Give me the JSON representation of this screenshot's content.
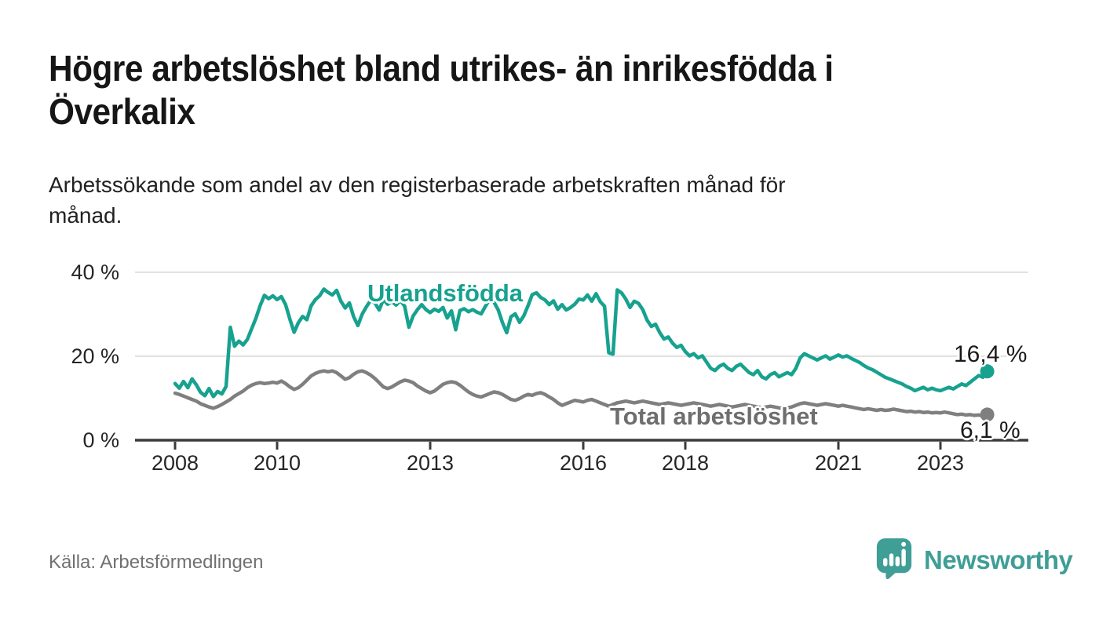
{
  "header": {
    "title_lines": [
      "Högre arbetslöshet bland utrikes- än inrikesfödda i",
      "Överkalix"
    ],
    "subtitle_lines": [
      "Arbetssökande som andel av den registerbaserade arbetskraften månad för",
      "månad."
    ]
  },
  "chart_data": {
    "type": "line",
    "x_unit": "month",
    "x_start": "2008-01",
    "x_end": "2023-12",
    "x_ticks": [
      2008,
      2010,
      2013,
      2016,
      2018,
      2021,
      2023
    ],
    "y_ticks": [
      {
        "value": 0,
        "label": "0 %"
      },
      {
        "value": 20,
        "label": "20 %"
      },
      {
        "value": 40,
        "label": "40 %"
      }
    ],
    "ylim": [
      0,
      42
    ],
    "grid": "horizontal",
    "legend_position": "inline-labels",
    "series": [
      {
        "name": "Utlandsfödda",
        "color": "#17a28f",
        "end_value": 16.4,
        "end_label": "16,4 %",
        "values": [
          13.5,
          12.4,
          14.0,
          12.5,
          14.6,
          13.2,
          11.4,
          10.6,
          12.3,
          10.4,
          11.6,
          11.0,
          12.8,
          26.9,
          22.4,
          23.6,
          22.7,
          24.0,
          26.5,
          29.0,
          32.0,
          34.5,
          33.7,
          34.4,
          33.5,
          34.2,
          32.3,
          28.8,
          25.7,
          28.0,
          29.5,
          28.7,
          32.0,
          33.5,
          34.4,
          36.0,
          35.2,
          34.6,
          35.7,
          33.1,
          31.5,
          32.7,
          29.4,
          27.3,
          30.0,
          31.8,
          33.3,
          32.7,
          31.0,
          33.5,
          32.4,
          33.0,
          32.2,
          33.3,
          31.9,
          26.9,
          29.6,
          31.1,
          32.3,
          31.1,
          30.4,
          31.2,
          30.7,
          31.6,
          29.1,
          30.8,
          26.3,
          30.9,
          31.3,
          30.6,
          31.1,
          30.5,
          30.1,
          31.9,
          33.6,
          32.9,
          31.0,
          28.0,
          25.6,
          29.4,
          30.1,
          28.1,
          29.6,
          32.0,
          34.7,
          35.1,
          34.0,
          33.4,
          32.3,
          33.2,
          31.2,
          32.3,
          31.0,
          31.6,
          32.4,
          33.6,
          33.4,
          34.6,
          33.1,
          34.9,
          33.0,
          31.9,
          20.8,
          20.5,
          35.8,
          35.1,
          33.6,
          31.6,
          33.1,
          32.6,
          31.1,
          28.6,
          27.1,
          27.6,
          25.6,
          24.1,
          24.6,
          23.1,
          22.1,
          22.6,
          21.1,
          20.1,
          20.6,
          19.6,
          20.1,
          18.6,
          17.1,
          16.6,
          17.6,
          18.1,
          17.1,
          16.6,
          17.6,
          18.1,
          17.1,
          16.1,
          15.6,
          16.6,
          15.1,
          14.6,
          15.6,
          16.1,
          15.1,
          15.6,
          16.1,
          15.6,
          17.1,
          19.6,
          20.6,
          20.1,
          19.6,
          19.1,
          19.6,
          20.1,
          19.3,
          19.8,
          20.3,
          19.8,
          20.1,
          19.5,
          19.0,
          18.5,
          17.8,
          17.2,
          16.8,
          16.2,
          15.6,
          15.0,
          14.6,
          14.2,
          13.8,
          13.4,
          12.8,
          12.4,
          11.8,
          12.2,
          12.6,
          12.0,
          12.4,
          12.0,
          11.8,
          12.2,
          12.6,
          12.2,
          12.8,
          13.4,
          13.0,
          13.8,
          14.6,
          15.4,
          15.0,
          16.4
        ]
      },
      {
        "name": "Total arbetslöshet",
        "color": "#7f7f7f",
        "end_value": 6.1,
        "end_label": "6,1 %",
        "values": [
          11.2,
          10.9,
          10.5,
          10.1,
          9.7,
          9.3,
          8.7,
          8.3,
          7.9,
          7.6,
          8.0,
          8.5,
          9.1,
          9.7,
          10.5,
          11.1,
          11.7,
          12.5,
          13.1,
          13.5,
          13.7,
          13.5,
          13.6,
          13.8,
          13.6,
          14.1,
          13.5,
          12.7,
          12.1,
          12.5,
          13.3,
          14.3,
          15.3,
          15.9,
          16.3,
          16.5,
          16.3,
          16.5,
          16.1,
          15.3,
          14.5,
          14.9,
          15.7,
          16.3,
          16.5,
          16.1,
          15.5,
          14.7,
          13.7,
          12.7,
          12.3,
          12.7,
          13.3,
          13.9,
          14.3,
          14.1,
          13.7,
          12.9,
          12.3,
          11.7,
          11.3,
          11.7,
          12.5,
          13.3,
          13.7,
          13.9,
          13.7,
          13.1,
          12.3,
          11.5,
          10.9,
          10.5,
          10.3,
          10.7,
          11.1,
          11.5,
          11.3,
          10.9,
          10.3,
          9.7,
          9.5,
          9.9,
          10.5,
          10.9,
          10.7,
          11.1,
          11.3,
          10.9,
          10.3,
          9.7,
          8.9,
          8.3,
          8.7,
          9.1,
          9.5,
          9.3,
          9.1,
          9.5,
          9.7,
          9.3,
          8.9,
          8.5,
          8.1,
          8.5,
          8.9,
          9.1,
          9.3,
          9.1,
          8.9,
          9.1,
          9.3,
          9.1,
          8.9,
          8.7,
          8.5,
          8.7,
          8.9,
          8.7,
          8.5,
          8.3,
          8.5,
          8.7,
          8.9,
          8.7,
          8.5,
          8.3,
          8.1,
          8.3,
          8.5,
          8.3,
          8.1,
          7.9,
          8.1,
          8.3,
          8.5,
          8.3,
          8.1,
          7.9,
          7.7,
          7.9,
          8.1,
          7.9,
          7.7,
          7.5,
          7.7,
          7.9,
          8.3,
          8.7,
          8.9,
          8.7,
          8.5,
          8.3,
          8.5,
          8.7,
          8.5,
          8.3,
          8.1,
          8.3,
          8.1,
          7.9,
          7.7,
          7.5,
          7.3,
          7.5,
          7.3,
          7.1,
          7.3,
          7.1,
          7.2,
          7.4,
          7.2,
          7.0,
          6.8,
          6.9,
          6.7,
          6.8,
          6.6,
          6.7,
          6.5,
          6.6,
          6.5,
          6.7,
          6.5,
          6.3,
          6.1,
          6.2,
          6.0,
          6.1,
          5.9,
          6.0,
          5.8,
          6.1
        ]
      }
    ]
  },
  "footer": {
    "source": "Källa: Arbetsförmedlingen",
    "brand": "Newsworthy"
  },
  "colors": {
    "accent_teal": "#17a28f",
    "line_gray": "#7f7f7f",
    "logo_teal": "#3f9e96",
    "axis": "#3b3b3b",
    "grid": "#d9d9d9",
    "text_dark": "#1a1a1a",
    "text_muted": "#717171"
  }
}
